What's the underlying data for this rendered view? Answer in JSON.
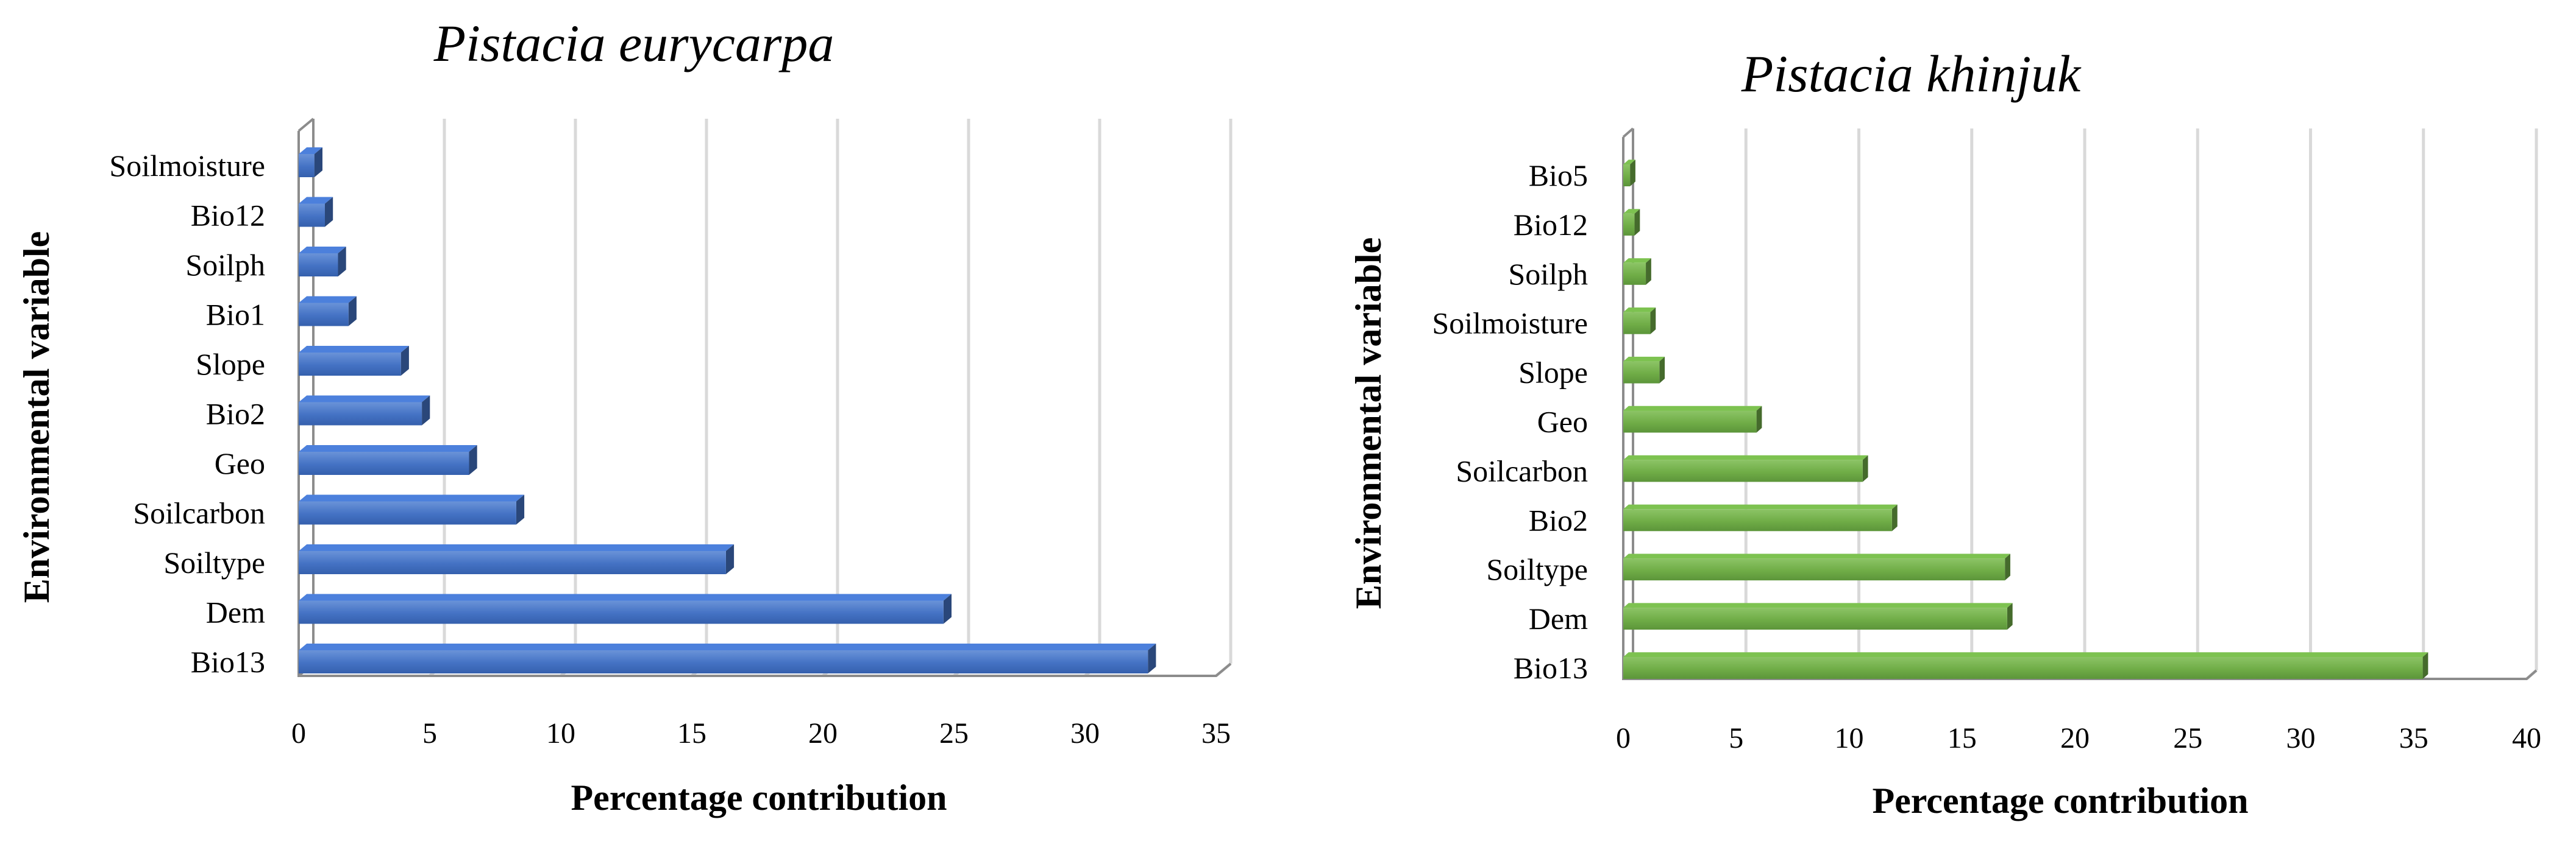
{
  "chart_data": [
    {
      "type": "bar",
      "orientation": "horizontal",
      "title": "Pistacia eurycarpa",
      "xlabel": "Percentage contribution",
      "ylabel": "Environmental variable",
      "categories": [
        "Soilmoisture",
        "Bio12",
        "Soilph",
        "Bio1",
        "Slope",
        "Bio2",
        "Geo",
        "Soilcarbon",
        "Soiltype",
        "Dem",
        "Bio13"
      ],
      "values": [
        0.6,
        1.0,
        1.5,
        1.9,
        3.9,
        4.7,
        6.5,
        8.3,
        16.3,
        24.6,
        32.4
      ],
      "xlim": [
        0,
        35
      ],
      "xticks": [
        0,
        5,
        10,
        15,
        20,
        25,
        30,
        35
      ],
      "bar_color": "#4472C4",
      "grid": true
    },
    {
      "type": "bar",
      "orientation": "horizontal",
      "title": "Pistacia khinjuk",
      "xlabel": "Percentage contribution",
      "ylabel": "Environmental variable",
      "categories": [
        "Bio5",
        "Bio12",
        "Soilph",
        "Soilmoisture",
        "Slope",
        "Geo",
        "Soilcarbon",
        "Bio2",
        "Soiltype",
        "Dem",
        "Bio13"
      ],
      "values": [
        0.3,
        0.5,
        1.0,
        1.2,
        1.6,
        5.9,
        10.6,
        11.9,
        16.9,
        17.0,
        35.4
      ],
      "xlim": [
        0,
        40
      ],
      "xticks": [
        0,
        5,
        10,
        15,
        20,
        25,
        30,
        35,
        40
      ],
      "bar_color": "#70AD47",
      "grid": true
    }
  ]
}
